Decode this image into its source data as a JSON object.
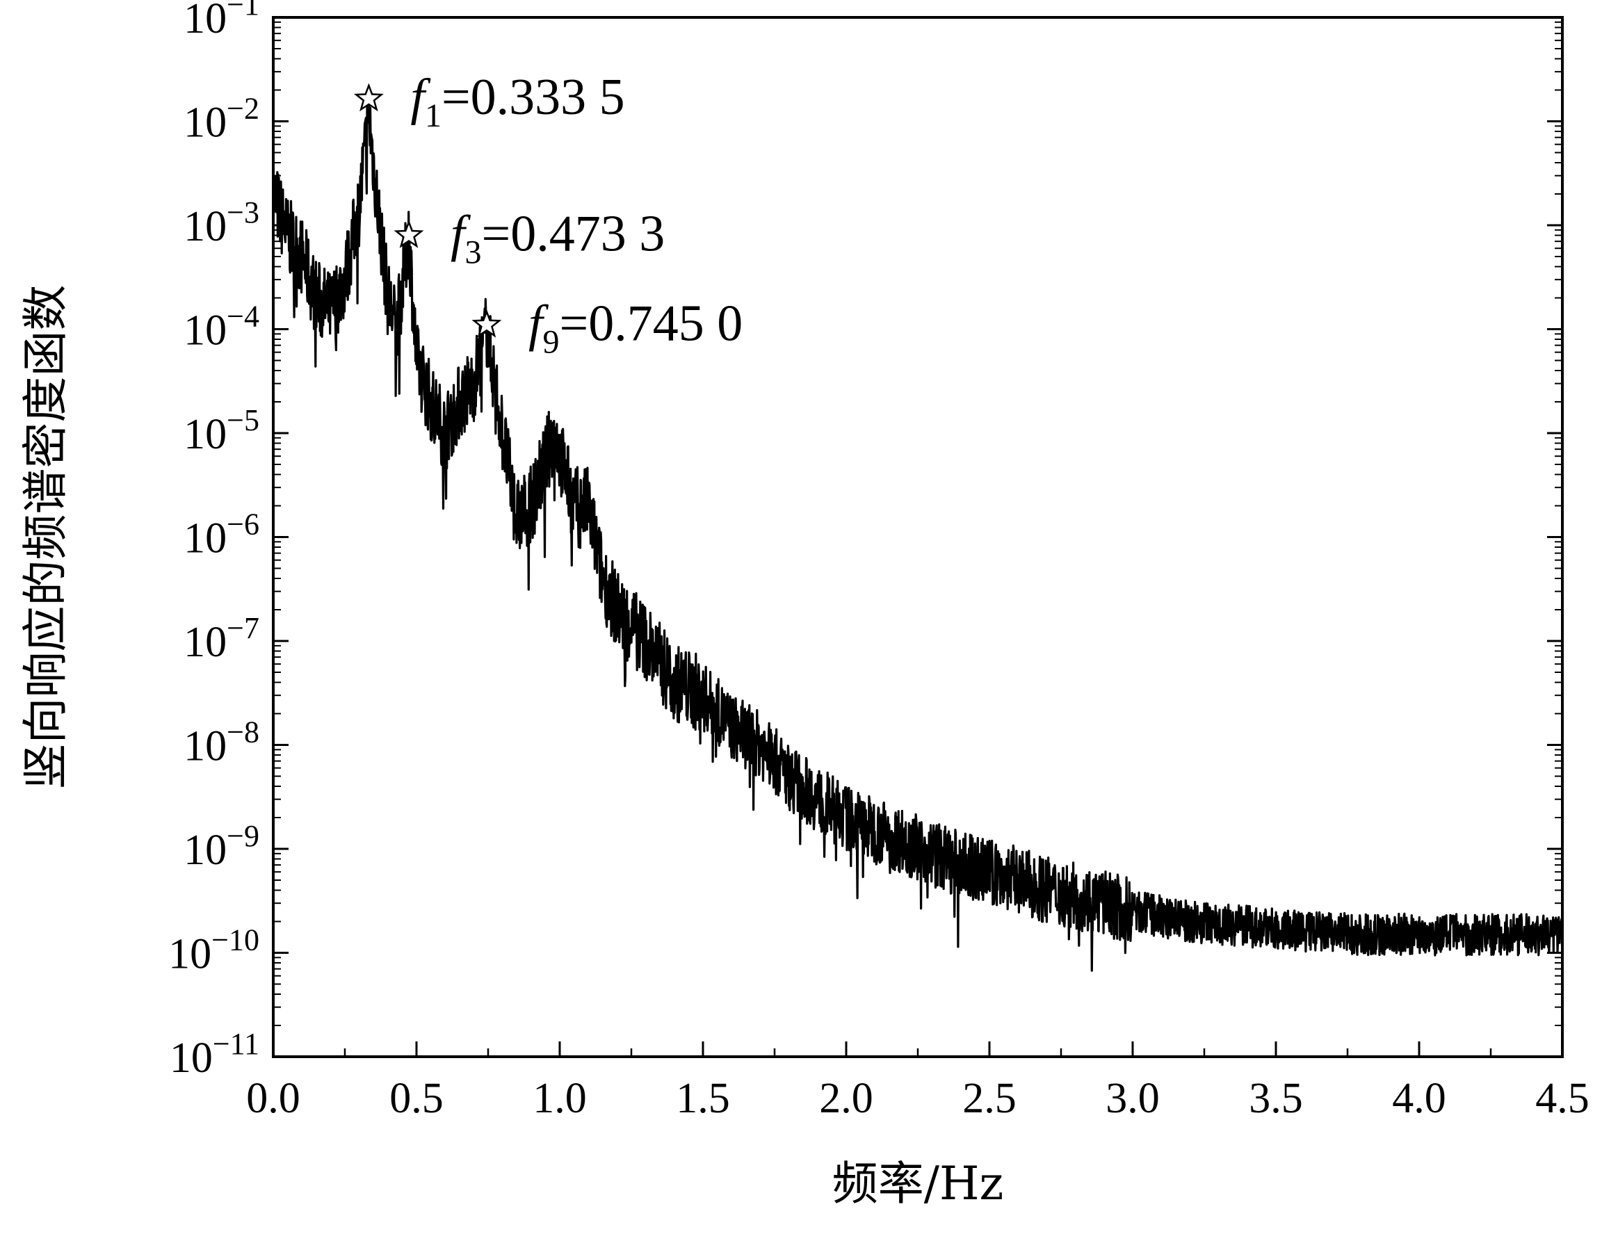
{
  "chart_data": {
    "type": "line",
    "title": "",
    "xlabel": "频率/Hz",
    "ylabel": "竖向响应的频谱密度函数",
    "xlim": [
      0.0,
      4.5
    ],
    "ylim": [
      1e-11,
      0.1
    ],
    "yscale": "log",
    "grid": false,
    "x_ticks": [
      "0.0",
      "0.5",
      "1.0",
      "1.5",
      "2.0",
      "2.5",
      "3.0",
      "3.5",
      "4.0",
      "4.5"
    ],
    "y_tick_exponents": [
      "−1",
      "−2",
      "−3",
      "−4",
      "−5",
      "−6",
      "−7",
      "−8",
      "−9",
      "−10",
      "−11"
    ],
    "y_tick_base": "10",
    "series": [
      {
        "color": "#000000",
        "x": [
          0.0,
          0.05,
          0.1,
          0.15,
          0.2,
          0.25,
          0.3,
          0.3335,
          0.36,
          0.4,
          0.43,
          0.4733,
          0.5,
          0.55,
          0.6,
          0.65,
          0.7,
          0.745,
          0.8,
          0.85,
          0.9,
          0.98,
          1.05,
          1.1,
          1.15,
          1.2,
          1.3,
          1.4,
          1.5,
          1.6,
          1.7,
          1.8,
          1.9,
          2.0,
          2.1,
          2.2,
          2.3,
          2.4,
          2.5,
          2.6,
          2.7,
          2.8,
          2.9,
          3.0,
          3.2,
          3.4,
          3.6,
          3.8,
          4.0,
          4.2,
          4.5
        ],
        "y": [
          0.002,
          0.0008,
          0.0005,
          0.0002,
          0.00015,
          0.0003,
          0.0015,
          0.012,
          0.002,
          0.0002,
          0.0001,
          0.0008,
          5e-05,
          2e-05,
          1e-05,
          2e-05,
          3e-05,
          0.0001,
          1e-05,
          1.5e-06,
          2e-06,
          1e-05,
          2e-06,
          2e-06,
          4e-07,
          2e-07,
          1e-07,
          4e-08,
          3e-08,
          1.5e-08,
          1e-08,
          5e-09,
          3e-09,
          2e-09,
          1.5e-09,
          1.2e-09,
          9e-10,
          7e-10,
          6e-10,
          5e-10,
          4e-10,
          3.5e-10,
          3e-10,
          2.5e-10,
          2e-10,
          1.8e-10,
          1.6e-10,
          1.5e-10,
          1.5e-10,
          1.5e-10,
          1.5e-10
        ]
      }
    ],
    "annotations": [
      {
        "x": 0.3335,
        "y": 0.0165,
        "sub": "1",
        "value": "=0.333 5"
      },
      {
        "x": 0.4733,
        "y": 0.0008,
        "sub": "3",
        "value": "=0.473 3"
      },
      {
        "x": 0.745,
        "y": 0.00011,
        "sub": "9",
        "value": "=0.745 0"
      }
    ]
  }
}
